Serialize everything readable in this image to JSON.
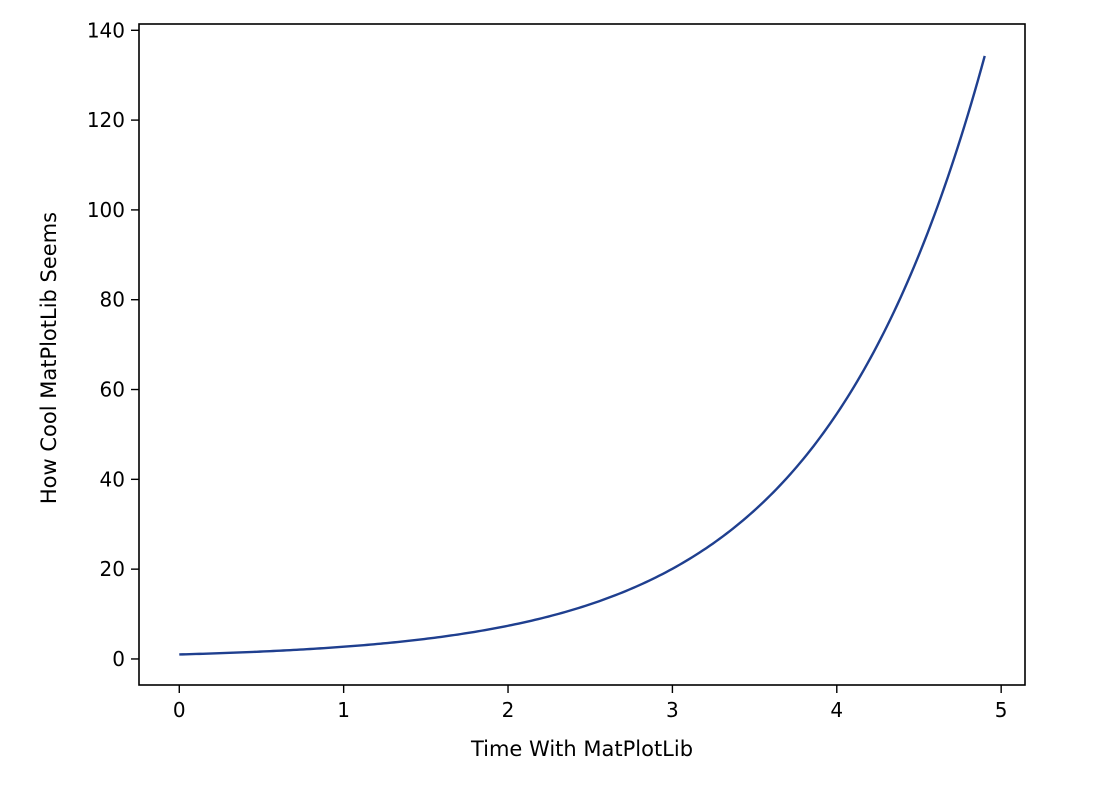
{
  "chart_data": {
    "type": "line",
    "title": "",
    "xlabel": "Time With MatPlotLib",
    "ylabel": "How Cool MatPlotLib Seems",
    "xlim": [
      -0.245,
      5.145
    ],
    "ylim": [
      -5.8,
      141.4
    ],
    "xticks": [
      0,
      1,
      2,
      3,
      4,
      5
    ],
    "yticks": [
      0,
      20,
      40,
      60,
      80,
      100,
      120,
      140
    ],
    "grid": false,
    "legend": "none",
    "series": [
      {
        "color": "#1f3f8f",
        "function": "exp",
        "x_start": 0,
        "x_end": 4.9,
        "samples": [
          [
            0,
            1.0
          ],
          [
            0.5,
            1.65
          ],
          [
            1,
            2.72
          ],
          [
            1.5,
            4.48
          ],
          [
            2,
            7.39
          ],
          [
            2.5,
            12.18
          ],
          [
            3,
            20.09
          ],
          [
            3.5,
            33.12
          ],
          [
            4,
            54.6
          ],
          [
            4.5,
            90.02
          ],
          [
            4.9,
            134.29
          ]
        ]
      }
    ]
  }
}
